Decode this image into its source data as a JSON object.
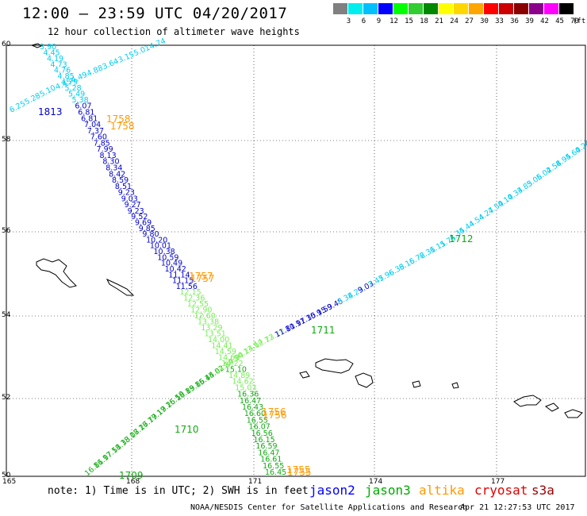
{
  "header": {
    "title": "12:00 – 23:59 UTC 04/20/2017",
    "subtitle": "12 hour collection of altimeter wave heights"
  },
  "colorbar": {
    "unit": "(ft)",
    "bins": [
      {
        "label": "3",
        "color": "#808080"
      },
      {
        "label": "6",
        "color": "#00eeee"
      },
      {
        "label": "9",
        "color": "#00bfff"
      },
      {
        "label": "12",
        "color": "#0000ff"
      },
      {
        "label": "15",
        "color": "#00ff00"
      },
      {
        "label": "18",
        "color": "#32cd32"
      },
      {
        "label": "21",
        "color": "#008800"
      },
      {
        "label": "24",
        "color": "#ffff00"
      },
      {
        "label": "27",
        "color": "#ffd700"
      },
      {
        "label": "30",
        "color": "#ffa500"
      },
      {
        "label": "33",
        "color": "#ff0000"
      },
      {
        "label": "36",
        "color": "#cc0000"
      },
      {
        "label": "39",
        "color": "#8b0000"
      },
      {
        "label": "42",
        "color": "#8b008b"
      },
      {
        "label": "45",
        "color": "#ff00ff"
      },
      {
        "label": "70",
        "color": "#000000"
      }
    ]
  },
  "map": {
    "lat_ticks": [
      "60",
      "58",
      "56",
      "54",
      "52",
      "50"
    ],
    "lon_ticks": [
      "165",
      "168",
      "171",
      "174",
      "177"
    ],
    "track_colors": {
      "cyan": "#00ccee",
      "blue": "#0000cc",
      "lightgreen": "#77ee55",
      "green": "#11aa11",
      "orange": "#ff9900"
    },
    "tracks": [
      {
        "name": "track-west",
        "points": [
          {
            "v": "3.90",
            "c": "cyan"
          },
          {
            "v": "4.45",
            "c": "cyan"
          },
          {
            "v": "4.19",
            "c": "cyan"
          },
          {
            "v": "4.73",
            "c": "cyan"
          },
          {
            "v": "4.76",
            "c": "cyan"
          },
          {
            "v": "4.85",
            "c": "cyan"
          },
          {
            "v": "4.79",
            "c": "cyan"
          },
          {
            "v": "5.28",
            "c": "cyan"
          },
          {
            "v": "5.49",
            "c": "cyan"
          },
          {
            "v": "5.38",
            "c": "cyan"
          },
          {
            "v": "6.07",
            "c": "blue"
          },
          {
            "v": "6.81",
            "c": "blue"
          },
          {
            "v": "6.81",
            "c": "blue"
          },
          {
            "v": "7.04",
            "c": "blue"
          },
          {
            "v": "7.37",
            "c": "blue"
          },
          {
            "v": "7.60",
            "c": "blue"
          },
          {
            "v": "7.85",
            "c": "blue"
          },
          {
            "v": "7.99",
            "c": "blue"
          },
          {
            "v": "8.13",
            "c": "blue"
          },
          {
            "v": "8.30",
            "c": "blue"
          },
          {
            "v": "8.34",
            "c": "blue"
          },
          {
            "v": "8.42",
            "c": "blue"
          },
          {
            "v": "8.59",
            "c": "blue"
          },
          {
            "v": "8.51",
            "c": "blue"
          },
          {
            "v": "9.23",
            "c": "blue"
          },
          {
            "v": "9.03",
            "c": "blue"
          },
          {
            "v": "9.27",
            "c": "blue"
          },
          {
            "v": "9.23",
            "c": "blue"
          },
          {
            "v": "9.52",
            "c": "blue"
          },
          {
            "v": "9.69",
            "c": "blue"
          },
          {
            "v": "9.85",
            "c": "blue"
          },
          {
            "v": "9.80",
            "c": "blue"
          },
          {
            "v": "10.20",
            "c": "blue"
          },
          {
            "v": "10.01",
            "c": "blue"
          },
          {
            "v": "10.38",
            "c": "blue"
          },
          {
            "v": "10.59",
            "c": "blue"
          },
          {
            "v": "10.49",
            "c": "blue"
          },
          {
            "v": "10.42",
            "c": "blue"
          },
          {
            "v": "11.14",
            "c": "blue"
          },
          {
            "v": "11.15",
            "c": "blue"
          },
          {
            "v": "11.56",
            "c": "blue"
          },
          {
            "v": "12.15",
            "c": "lightgreen"
          },
          {
            "v": "12.36",
            "c": "lightgreen"
          },
          {
            "v": "12.55",
            "c": "lightgreen"
          },
          {
            "v": "12.90",
            "c": "lightgreen"
          },
          {
            "v": "12.60",
            "c": "lightgreen"
          },
          {
            "v": "13.38",
            "c": "lightgreen"
          },
          {
            "v": "13.29",
            "c": "lightgreen"
          },
          {
            "v": "13.51",
            "c": "lightgreen"
          },
          {
            "v": "14.00",
            "c": "lightgreen"
          },
          {
            "v": "14.41",
            "c": "lightgreen"
          },
          {
            "v": "14.59",
            "c": "lightgreen"
          },
          {
            "v": "14.69",
            "c": "lightgreen"
          },
          {
            "v": "14.22",
            "c": "lightgreen"
          },
          {
            "v": "15.10",
            "c": "green"
          },
          {
            "v": "14.89",
            "c": "lightgreen"
          },
          {
            "v": "14.62",
            "c": "lightgreen"
          },
          {
            "v": "15.03",
            "c": "lightgreen"
          },
          {
            "v": "16.36",
            "c": "green"
          },
          {
            "v": "16.47",
            "c": "green"
          },
          {
            "v": "16.43",
            "c": "green"
          },
          {
            "v": "16.60",
            "c": "green"
          },
          {
            "v": "16.55",
            "c": "green"
          },
          {
            "v": "16.07",
            "c": "green"
          },
          {
            "v": "16.56",
            "c": "green"
          },
          {
            "v": "16.15",
            "c": "green"
          },
          {
            "v": "16.59",
            "c": "green"
          },
          {
            "v": "16.47",
            "c": "green"
          },
          {
            "v": "16.61",
            "c": "green"
          },
          {
            "v": "16.55",
            "c": "green"
          },
          {
            "v": "16.45",
            "c": "green"
          }
        ]
      },
      {
        "name": "track-northeast",
        "points": [
          {
            "v": "6.25",
            "c": "cyan"
          },
          {
            "v": "5.28",
            "c": "cyan"
          },
          {
            "v": "5.10",
            "c": "cyan"
          },
          {
            "v": "4.45",
            "c": "cyan"
          },
          {
            "v": "4.49",
            "c": "cyan"
          },
          {
            "v": "4.88",
            "c": "cyan"
          },
          {
            "v": "3.64",
            "c": "cyan"
          },
          {
            "v": "3.15",
            "c": "cyan"
          },
          {
            "v": "5.01",
            "c": "cyan"
          },
          {
            "v": "4.74",
            "c": "cyan"
          }
        ]
      },
      {
        "name": "track-east",
        "points": [
          {
            "v": "16.81",
            "c": "green"
          },
          {
            "v": "16.97",
            "c": "green"
          },
          {
            "v": "17.51",
            "c": "green"
          },
          {
            "v": "18.33",
            "c": "green"
          },
          {
            "v": "18.07",
            "c": "green"
          },
          {
            "v": "18.27",
            "c": "green"
          },
          {
            "v": "16.79",
            "c": "green"
          },
          {
            "v": "17.19",
            "c": "green"
          },
          {
            "v": "17.25",
            "c": "green"
          },
          {
            "v": "16.59",
            "c": "green"
          },
          {
            "v": "16.89",
            "c": "green"
          },
          {
            "v": "15.86",
            "c": "green"
          },
          {
            "v": "15.44",
            "c": "green"
          },
          {
            "v": "15.02",
            "c": "green"
          },
          {
            "v": "14.89",
            "c": "lightgreen"
          },
          {
            "v": "14.90",
            "c": "lightgreen"
          },
          {
            "v": "14.24",
            "c": "lightgreen"
          },
          {
            "v": "13.64",
            "c": "lightgreen"
          },
          {
            "v": "12.73",
            "c": "lightgreen"
          },
          {
            "v": "12.77",
            "c": "lightgreen"
          },
          {
            "v": "11.81",
            "c": "blue"
          },
          {
            "v": "10.97",
            "c": "blue"
          },
          {
            "v": "11.35",
            "c": "blue"
          },
          {
            "v": "10.15",
            "c": "blue"
          },
          {
            "v": "9.59",
            "c": "blue"
          },
          {
            "v": "9.45",
            "c": "blue"
          },
          {
            "v": "8.34",
            "c": "cyan"
          },
          {
            "v": "8.23",
            "c": "cyan"
          },
          {
            "v": "9.03",
            "c": "blue"
          },
          {
            "v": "7.45",
            "c": "cyan"
          },
          {
            "v": "7.96",
            "c": "cyan"
          },
          {
            "v": "6.33",
            "c": "cyan"
          },
          {
            "v": "6.15",
            "c": "cyan"
          },
          {
            "v": "6.72",
            "c": "cyan"
          },
          {
            "v": "6.31",
            "c": "cyan"
          },
          {
            "v": "6.11",
            "c": "cyan"
          },
          {
            "v": "5.75",
            "c": "cyan"
          },
          {
            "v": "4.35",
            "c": "cyan"
          },
          {
            "v": "4.44",
            "c": "cyan"
          },
          {
            "v": "4.54",
            "c": "cyan"
          },
          {
            "v": "4.27",
            "c": "cyan"
          },
          {
            "v": "4.50",
            "c": "cyan"
          },
          {
            "v": "4.10",
            "c": "cyan"
          },
          {
            "v": "4.34",
            "c": "cyan"
          },
          {
            "v": "3.83",
            "c": "cyan"
          },
          {
            "v": "5.06",
            "c": "cyan"
          },
          {
            "v": "5.02",
            "c": "cyan"
          },
          {
            "v": "4.58",
            "c": "cyan"
          },
          {
            "v": "4.95",
            "c": "cyan"
          },
          {
            "v": "4.60",
            "c": "cyan"
          },
          {
            "v": "4.24",
            "c": "cyan"
          },
          {
            "v": "4",
            "c": "cyan"
          }
        ]
      }
    ],
    "time_labels": [
      {
        "text": "1813",
        "c": "blue"
      },
      {
        "text": "1758",
        "c": "orange"
      },
      {
        "text": "1758",
        "c": "orange"
      },
      {
        "text": "1757",
        "c": "orange"
      },
      {
        "text": "1757",
        "c": "orange"
      },
      {
        "text": "1756",
        "c": "orange"
      },
      {
        "text": "1756",
        "c": "orange"
      },
      {
        "text": "1755",
        "c": "orange"
      },
      {
        "text": "1755",
        "c": "orange"
      },
      {
        "text": "1712",
        "c": "green"
      },
      {
        "text": "1711",
        "c": "green"
      },
      {
        "text": "1710",
        "c": "green"
      },
      {
        "text": "1709",
        "c": "green"
      }
    ]
  },
  "footer": {
    "note": "note: 1) Time is in UTC; 2) SWH is in feet",
    "legend": [
      {
        "label": "jason2",
        "color": "#0000ff"
      },
      {
        "label": "jason3",
        "color": "#00aa00"
      },
      {
        "label": "altika",
        "color": "#ff9900"
      },
      {
        "label": "cryosat",
        "color": "#dd0000"
      },
      {
        "label": "s3a",
        "color": "#990000"
      }
    ],
    "credit": "NOAA/NESDIS Center for Satellite Applications and Research",
    "timestamp": "Apr 21 12:27:53 UTC 2017"
  }
}
